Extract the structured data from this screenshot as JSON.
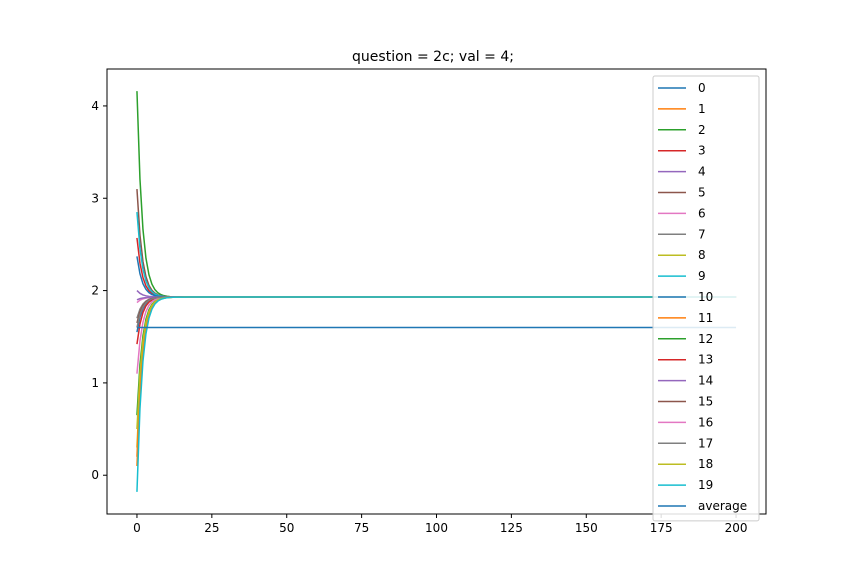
{
  "chart_data": {
    "type": "line",
    "title": "question = 2c; val = 4;",
    "xlabel": "",
    "ylabel": "",
    "xlim": [
      -10,
      210
    ],
    "ylim": [
      -0.42,
      4.4
    ],
    "xticks": [
      0,
      25,
      50,
      75,
      100,
      125,
      150,
      175,
      200
    ],
    "yticks": [
      0,
      1,
      2,
      3,
      4
    ],
    "grid": false,
    "legend_position": "top-right",
    "converged_value": 1.93,
    "average_value": 1.6,
    "series": [
      {
        "name": "0",
        "color": "#1f77b4",
        "start": 1.55
      },
      {
        "name": "1",
        "color": "#ff7f0e",
        "start": 0.1
      },
      {
        "name": "2",
        "color": "#2ca02c",
        "start": 4.16
      },
      {
        "name": "3",
        "color": "#d62728",
        "start": 2.57
      },
      {
        "name": "4",
        "color": "#9467bd",
        "start": 2.0
      },
      {
        "name": "5",
        "color": "#8c564b",
        "start": 3.1
      },
      {
        "name": "6",
        "color": "#e377c2",
        "start": 1.87
      },
      {
        "name": "7",
        "color": "#7f7f7f",
        "start": 1.7
      },
      {
        "name": "8",
        "color": "#bcbd22",
        "start": 0.3
      },
      {
        "name": "9",
        "color": "#17becf",
        "start": 2.85
      },
      {
        "name": "10",
        "color": "#1f77b4",
        "start": 2.37
      },
      {
        "name": "11",
        "color": "#ff7f0e",
        "start": 0.2
      },
      {
        "name": "12",
        "color": "#2ca02c",
        "start": 0.65
      },
      {
        "name": "13",
        "color": "#d62728",
        "start": 1.42
      },
      {
        "name": "14",
        "color": "#9467bd",
        "start": 1.9
      },
      {
        "name": "15",
        "color": "#8c564b",
        "start": 1.65
      },
      {
        "name": "16",
        "color": "#e377c2",
        "start": 1.1
      },
      {
        "name": "17",
        "color": "#7f7f7f",
        "start": 1.6
      },
      {
        "name": "18",
        "color": "#bcbd22",
        "start": 0.5
      },
      {
        "name": "19",
        "color": "#17becf",
        "start": -0.18
      },
      {
        "name": "average",
        "color": "#1f77b4",
        "start": 1.6
      }
    ]
  }
}
